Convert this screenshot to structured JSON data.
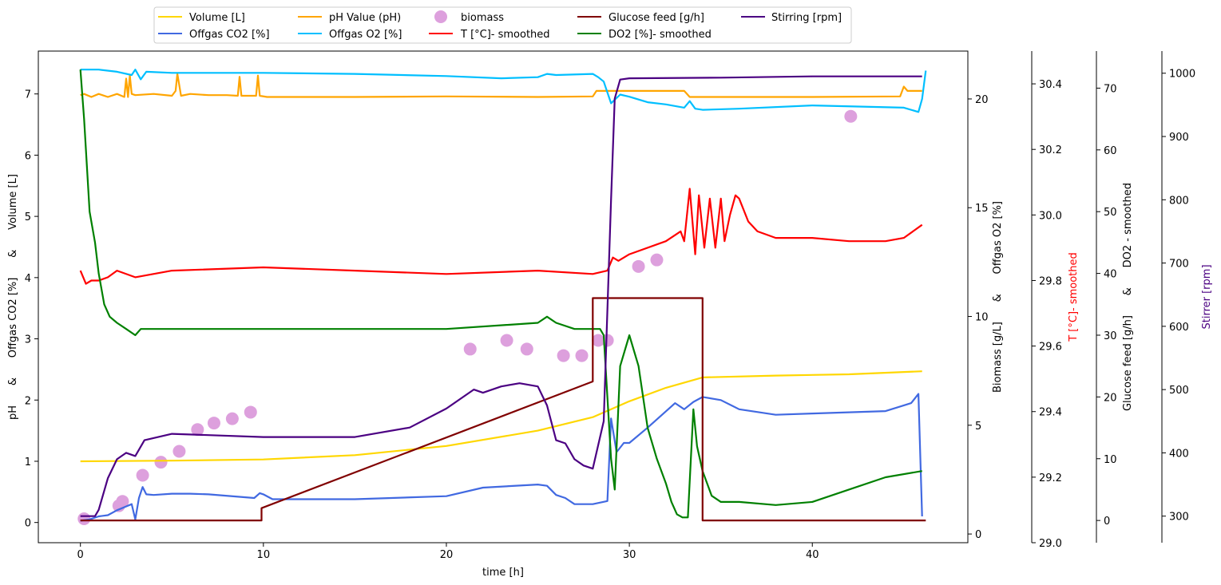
{
  "chart_data": {
    "type": "line",
    "xlabel": "time [h]",
    "xlim": [
      -2.3,
      48.5
    ],
    "xticks": [
      0,
      10,
      20,
      30,
      40
    ],
    "axes": {
      "left": {
        "label_parts": [
          "pH",
          "&",
          "Offgas CO2 [%]",
          "&",
          "Volume [L]"
        ],
        "color": "#000000",
        "lim": [
          -0.33,
          7.7
        ],
        "ticks": [
          0,
          1,
          2,
          3,
          4,
          5,
          6,
          7
        ]
      },
      "right1": {
        "label_parts": [
          "Biomass [g/L]",
          "&",
          "Offgas O2 [%]"
        ],
        "color": "#000000",
        "lim": [
          -0.4,
          22.2
        ],
        "ticks": [
          0,
          5,
          10,
          15,
          20
        ]
      },
      "right2": {
        "label_parts": [
          "T [°C]- smoothed"
        ],
        "color": "#ff0000",
        "lim": [
          29.0,
          30.5
        ],
        "ticks": [
          29.0,
          29.2,
          29.4,
          29.6,
          29.8,
          30.0,
          30.2,
          30.4
        ],
        "tick_labels": [
          "29.0",
          "29.2",
          "29.4",
          "29.6",
          "29.8",
          "30.0",
          "30.2",
          "30.4"
        ]
      },
      "right3": {
        "label_parts": [
          "Glucose feed [g/h]",
          "&",
          "DO2 - smoothed"
        ],
        "color": "#000000",
        "lim": [
          -3.6,
          76
        ],
        "ticks": [
          0,
          10,
          20,
          30,
          40,
          50,
          60,
          70
        ]
      },
      "right4": {
        "label_parts": [
          "Stirrer [rpm]"
        ],
        "color": "#4b0082",
        "lim": [
          258,
          1035
        ],
        "ticks": [
          300,
          400,
          500,
          600,
          700,
          800,
          900,
          1000
        ]
      }
    },
    "legend": {
      "placement": "top-center",
      "columns": [
        [
          "Volume [L]",
          "Offgas CO2 [%]"
        ],
        [
          "pH Value (pH)",
          "Offgas O2 [%]"
        ],
        [
          "biomass",
          "T [°C]- smoothed"
        ],
        [
          "Glucose feed [g/h]",
          "DO2 [%]- smoothed"
        ],
        [
          "Stirring [rpm]"
        ]
      ]
    },
    "series": [
      {
        "name": "Volume [L]",
        "axis": "left",
        "color": "#ffd700",
        "style": "line",
        "x": [
          0,
          5,
          10,
          15,
          20,
          25,
          28,
          30,
          32,
          34,
          38,
          42,
          46
        ],
        "y": [
          1.0,
          1.01,
          1.03,
          1.1,
          1.25,
          1.5,
          1.72,
          1.98,
          2.2,
          2.37,
          2.4,
          2.42,
          2.47
        ]
      },
      {
        "name": "pH Value (pH)",
        "axis": "left",
        "color": "#ffa500",
        "style": "line",
        "x": [
          0,
          0.2,
          0.6,
          1.0,
          1.5,
          2.0,
          2.4,
          2.5,
          2.6,
          2.7,
          2.8,
          3.0,
          4,
          5,
          5.2,
          5.3,
          5.5,
          6,
          7,
          8,
          8.6,
          8.7,
          8.8,
          9,
          9.6,
          9.7,
          9.8,
          10.2,
          15,
          20,
          25,
          28,
          28.2,
          30,
          33,
          33.3,
          34,
          40,
          44.8,
          45,
          45.2,
          46
        ],
        "y": [
          6.98,
          7.0,
          6.95,
          7.0,
          6.95,
          7.0,
          6.95,
          7.25,
          6.95,
          7.3,
          7.0,
          6.98,
          7.0,
          6.97,
          7.05,
          7.33,
          6.97,
          7.0,
          6.98,
          6.98,
          6.97,
          7.28,
          6.97,
          6.97,
          6.97,
          7.3,
          6.97,
          6.95,
          6.95,
          6.96,
          6.95,
          6.96,
          7.05,
          7.05,
          7.05,
          6.95,
          6.95,
          6.95,
          6.96,
          7.12,
          7.05,
          7.05
        ]
      },
      {
        "name": "Offgas CO2 [%]",
        "axis": "left",
        "color": "#4169e1",
        "style": "line",
        "x": [
          0,
          0.5,
          1,
          1.5,
          2,
          2.8,
          3.0,
          3.2,
          3.4,
          3.6,
          4,
          5,
          6,
          7,
          9.5,
          9.8,
          10,
          10.5,
          15,
          20,
          22,
          25,
          25.5,
          26,
          26.5,
          27,
          28,
          28.8,
          29,
          29.3,
          29.7,
          30,
          31,
          32.5,
          33,
          33.5,
          34,
          35,
          36,
          38,
          40,
          44,
          45.4,
          45.8,
          46
        ],
        "y": [
          0.03,
          0.05,
          0.1,
          0.12,
          0.2,
          0.3,
          0.05,
          0.4,
          0.58,
          0.46,
          0.45,
          0.47,
          0.47,
          0.46,
          0.4,
          0.48,
          0.46,
          0.38,
          0.38,
          0.43,
          0.57,
          0.62,
          0.6,
          0.45,
          0.4,
          0.3,
          0.3,
          0.35,
          1.7,
          1.15,
          1.3,
          1.3,
          1.55,
          1.95,
          1.85,
          1.97,
          2.05,
          2.0,
          1.85,
          1.76,
          1.78,
          1.82,
          1.95,
          2.1,
          0.1
        ]
      },
      {
        "name": "Offgas O2 [%]",
        "axis": "right1",
        "color": "#00bfff",
        "style": "line",
        "x": [
          0,
          1,
          2,
          2.8,
          3.0,
          3.3,
          3.6,
          5,
          10,
          15,
          20,
          23,
          25,
          25.5,
          26,
          28,
          28.3,
          28.6,
          29.0,
          29.5,
          30,
          31,
          32,
          33,
          33.3,
          33.6,
          34,
          36,
          40,
          45,
          45.8,
          46.0,
          46.2
        ],
        "y": [
          21.35,
          21.35,
          21.25,
          21.1,
          21.35,
          20.9,
          21.25,
          21.2,
          21.2,
          21.15,
          21.05,
          20.95,
          21.0,
          21.15,
          21.1,
          21.15,
          21.0,
          20.8,
          19.8,
          20.2,
          20.1,
          19.85,
          19.75,
          19.6,
          19.9,
          19.55,
          19.5,
          19.55,
          19.7,
          19.6,
          19.4,
          20.0,
          21.3
        ]
      },
      {
        "name": "T [°C]- smoothed",
        "axis": "right2",
        "color": "#ff0000",
        "style": "line",
        "x": [
          0,
          0.3,
          0.6,
          1.0,
          1.5,
          2,
          3,
          5,
          10,
          15,
          20,
          25,
          28,
          28.8,
          29.1,
          29.4,
          30,
          32,
          32.8,
          33.0,
          33.3,
          33.6,
          33.8,
          34.1,
          34.4,
          34.7,
          35,
          35.2,
          35.5,
          35.8,
          36.0,
          36.5,
          37,
          37.5,
          38,
          40,
          42,
          44,
          45,
          46
        ],
        "y": [
          29.83,
          29.79,
          29.8,
          29.8,
          29.81,
          29.83,
          29.81,
          29.83,
          29.84,
          29.83,
          29.82,
          29.83,
          29.82,
          29.83,
          29.87,
          29.86,
          29.88,
          29.92,
          29.95,
          29.92,
          30.08,
          29.88,
          30.06,
          29.9,
          30.05,
          29.9,
          30.05,
          29.92,
          30.0,
          30.06,
          30.05,
          29.98,
          29.95,
          29.94,
          29.93,
          29.93,
          29.92,
          29.92,
          29.93,
          29.97
        ]
      },
      {
        "name": "DO2 [%]- smoothed",
        "axis": "right3",
        "color": "#008000",
        "style": "line",
        "x": [
          0,
          0.2,
          0.5,
          0.8,
          1.0,
          1.3,
          1.6,
          2.0,
          2.5,
          3.0,
          3.3,
          4,
          6,
          10,
          15,
          20,
          25,
          25.5,
          26,
          27,
          28.0,
          28.4,
          28.6,
          29.0,
          29.2,
          29.5,
          30.0,
          30.5,
          31.0,
          31.5,
          32.0,
          32.3,
          32.6,
          32.9,
          33.2,
          33.5,
          33.7,
          34.0,
          34.5,
          35,
          36,
          38,
          40,
          42,
          44,
          46
        ],
        "y": [
          73,
          65,
          50,
          45,
          40,
          35,
          33,
          32,
          31,
          30,
          31,
          31,
          31,
          31,
          31,
          31,
          32,
          33,
          32,
          31,
          31,
          31,
          30,
          10,
          5,
          25,
          30,
          25,
          15,
          10,
          6,
          3,
          1,
          0.5,
          0.5,
          18,
          12,
          8,
          4,
          3,
          3,
          2.5,
          3,
          5,
          7,
          8
        ]
      },
      {
        "name": "Glucose feed [g/h]",
        "axis": "right3",
        "color": "#800000",
        "style": "line",
        "x": [
          0,
          9.9,
          9.9,
          28.0,
          28.0,
          34.0,
          34.0,
          46.2
        ],
        "y": [
          0,
          0,
          2,
          22.5,
          36,
          36,
          0,
          0
        ]
      },
      {
        "name": "Stirring [rpm]",
        "axis": "right4",
        "color": "#4b0082",
        "style": "line",
        "x": [
          0,
          0.8,
          1.0,
          1.5,
          2.0,
          2.5,
          3.0,
          3.5,
          5,
          10,
          15,
          18,
          20,
          21.5,
          22,
          23,
          24,
          25,
          25.5,
          26,
          26.5,
          27,
          27.5,
          28,
          28.6,
          29.0,
          29.2,
          29.5,
          30,
          35,
          40,
          46
        ],
        "y": [
          300,
          300,
          310,
          360,
          390,
          400,
          395,
          420,
          430,
          425,
          425,
          440,
          470,
          500,
          495,
          505,
          510,
          505,
          475,
          420,
          415,
          390,
          380,
          375,
          450,
          800,
          960,
          990,
          992,
          993,
          995,
          995
        ]
      },
      {
        "name": "biomass",
        "axis": "right1",
        "color": "#dda0dd",
        "style": "scatter",
        "x": [
          0.2,
          2.1,
          2.3,
          3.4,
          4.4,
          5.4,
          6.4,
          7.3,
          8.3,
          9.3,
          21.3,
          23.3,
          24.4,
          26.4,
          27.4,
          28.3,
          28.8,
          30.5,
          31.5,
          42.1
        ],
        "y": [
          0.7,
          1.3,
          1.5,
          2.7,
          3.3,
          3.8,
          4.8,
          5.1,
          5.3,
          5.6,
          8.5,
          8.9,
          8.5,
          8.2,
          8.2,
          8.9,
          8.9,
          12.3,
          12.6,
          19.2
        ]
      }
    ]
  }
}
